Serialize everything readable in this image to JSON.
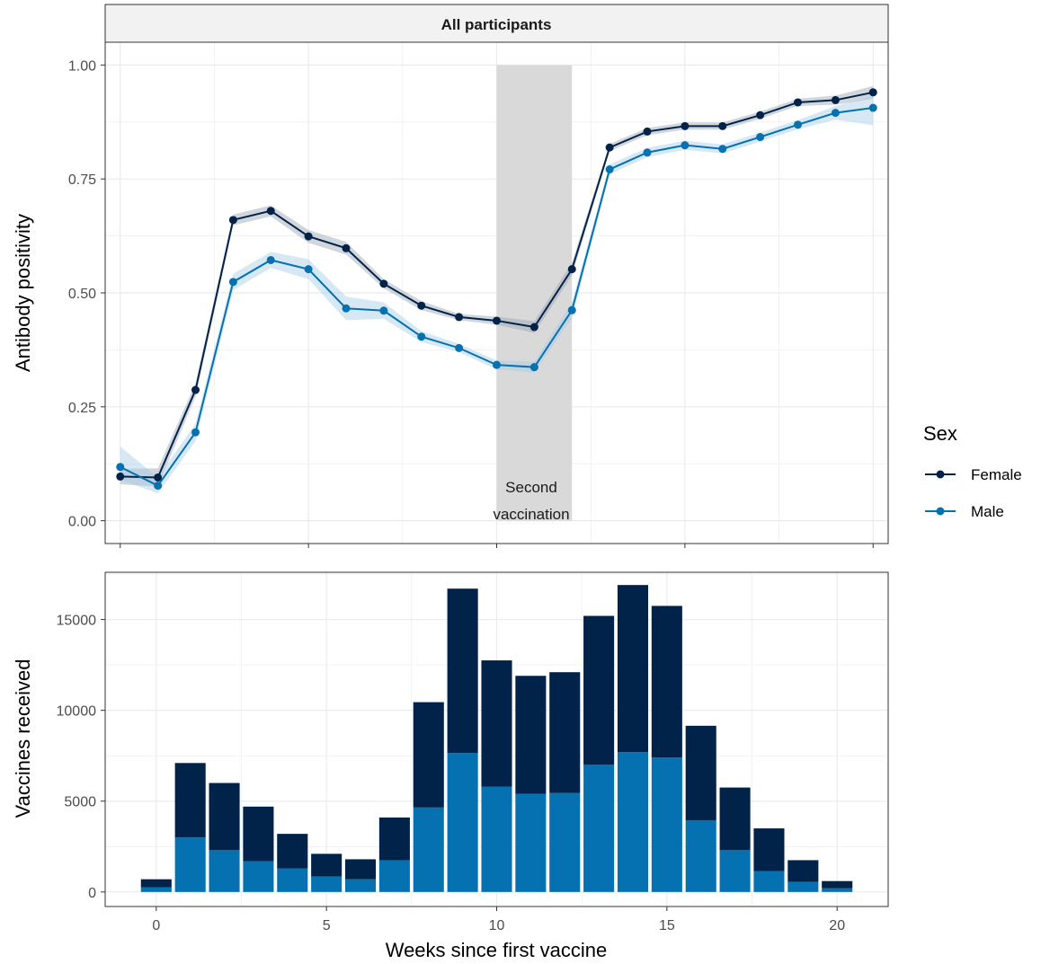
{
  "chart_data": [
    {
      "type": "line",
      "strip_title": "All participants",
      "ylabel": "Antibody positivity",
      "xlabel": "",
      "x_range": [
        -0.4,
        20.4
      ],
      "ylim": [
        -0.05,
        1.05
      ],
      "yticks": [
        "0.00",
        "0.25",
        "0.50",
        "0.75",
        "1.00"
      ],
      "xticks": [
        0,
        5,
        10,
        15,
        20
      ],
      "grid": true,
      "legend": {
        "title": "Sex",
        "position": "right"
      },
      "annotation": {
        "text": [
          "Second",
          "vaccination"
        ],
        "shaded_x": [
          10,
          12
        ]
      },
      "series": [
        {
          "name": "Female",
          "color": "#012349",
          "x": [
            0,
            1,
            2,
            3,
            4,
            5,
            6,
            7,
            8,
            9,
            10,
            11,
            12,
            13,
            14,
            15,
            16,
            17,
            18,
            19,
            20
          ],
          "values": [
            0.097,
            0.095,
            0.287,
            0.66,
            0.68,
            0.624,
            0.598,
            0.52,
            0.472,
            0.447,
            0.439,
            0.425,
            0.552,
            0.819,
            0.854,
            0.866,
            0.866,
            0.89,
            0.918,
            0.923,
            0.94
          ],
          "ci_low": [
            0.08,
            0.075,
            0.272,
            0.648,
            0.668,
            0.61,
            0.584,
            0.51,
            0.462,
            0.44,
            0.43,
            0.412,
            0.538,
            0.811,
            0.846,
            0.858,
            0.858,
            0.882,
            0.91,
            0.913,
            0.926
          ],
          "ci_high": [
            0.114,
            0.115,
            0.302,
            0.672,
            0.692,
            0.638,
            0.612,
            0.53,
            0.482,
            0.454,
            0.448,
            0.438,
            0.566,
            0.827,
            0.862,
            0.874,
            0.874,
            0.898,
            0.926,
            0.933,
            0.954
          ]
        },
        {
          "name": "Male",
          "color": "#0571B0",
          "x": [
            0,
            1,
            2,
            3,
            4,
            5,
            6,
            7,
            8,
            9,
            10,
            11,
            12,
            13,
            14,
            15,
            16,
            17,
            18,
            19,
            20
          ],
          "values": [
            0.118,
            0.077,
            0.194,
            0.524,
            0.572,
            0.552,
            0.466,
            0.461,
            0.404,
            0.379,
            0.342,
            0.337,
            0.462,
            0.771,
            0.808,
            0.824,
            0.816,
            0.842,
            0.869,
            0.895,
            0.906
          ],
          "ci_low": [
            0.09,
            0.06,
            0.175,
            0.506,
            0.555,
            0.53,
            0.44,
            0.443,
            0.392,
            0.37,
            0.332,
            0.325,
            0.445,
            0.76,
            0.798,
            0.814,
            0.806,
            0.832,
            0.859,
            0.88,
            0.868
          ],
          "ci_high": [
            0.163,
            0.095,
            0.213,
            0.542,
            0.59,
            0.574,
            0.492,
            0.479,
            0.416,
            0.388,
            0.352,
            0.349,
            0.479,
            0.782,
            0.818,
            0.834,
            0.826,
            0.852,
            0.879,
            0.91,
            0.932
          ]
        }
      ]
    },
    {
      "type": "bar",
      "stacked": true,
      "ylabel": "Vaccines received",
      "xlabel": "Weeks since first vaccine",
      "x_range": [
        -1.5,
        21.5
      ],
      "ylim": [
        -800,
        17600
      ],
      "yticks": [
        "0",
        "5000",
        "10000",
        "15000"
      ],
      "xticks": [
        "0",
        "5",
        "10",
        "15",
        "20"
      ],
      "grid": true,
      "x": [
        0,
        1,
        2,
        3,
        4,
        5,
        6,
        7,
        8,
        9,
        10,
        11,
        12,
        13,
        14,
        15,
        16,
        17,
        18,
        19,
        20
      ],
      "series": [
        {
          "name": "Male",
          "color": "#0571B0",
          "values": [
            250,
            3000,
            2300,
            1700,
            1300,
            850,
            700,
            1750,
            4650,
            7650,
            5800,
            5400,
            5450,
            7000,
            7700,
            7400,
            3950,
            2300,
            1150,
            550,
            200
          ]
        },
        {
          "name": "Female",
          "color": "#012349",
          "values": [
            450,
            4100,
            3700,
            3000,
            1900,
            1250,
            1100,
            2350,
            5800,
            9050,
            6950,
            6500,
            6650,
            8200,
            9200,
            8350,
            5200,
            3450,
            2350,
            1200,
            400
          ]
        }
      ]
    }
  ]
}
